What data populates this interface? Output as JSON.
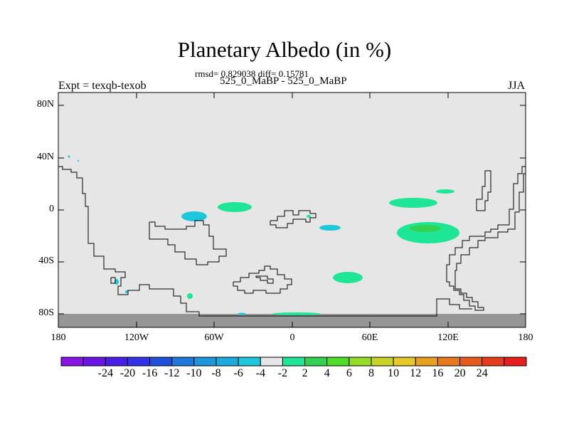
{
  "title": "Planetary Albedo (in %)",
  "stats_text": "rmsd= 0.829038 diff= 0.15781",
  "case_text": "525_0_MaBP - 525_0_MaBP",
  "expt_text": "Expt = texqb-texob",
  "season_text": "JJA",
  "y_ticks": [
    "80N",
    "40N",
    "0",
    "40S",
    "80S"
  ],
  "x_ticks": [
    "180",
    "120W",
    "60W",
    "0",
    "60E",
    "120E",
    "180"
  ],
  "colorbar": {
    "colors": [
      "#8a14e6",
      "#6a14e6",
      "#4a1ee6",
      "#3232e6",
      "#1e50dc",
      "#1e78dc",
      "#1e96dc",
      "#1eaadc",
      "#1ec8dc",
      "#e6e6e6",
      "#1ee696",
      "#32d250",
      "#50dc28",
      "#96dc28",
      "#c8d228",
      "#e6c828",
      "#e6a01e",
      "#e6781e",
      "#e65a1e",
      "#e63c1e",
      "#e61e1e"
    ],
    "labels": [
      "-24",
      "-20",
      "-16",
      "-12",
      "-10",
      "-8",
      "-6",
      "-4",
      "-2",
      "2",
      "4",
      "6",
      "8",
      "10",
      "12",
      "16",
      "20",
      "24"
    ]
  },
  "colors": {
    "ocean_background": "#e6e6e6",
    "antarctic_mask": "#969696",
    "positive_anomaly": "#1ee696",
    "strong_positive_anomaly": "#32d250",
    "negative_anomaly": "#1ec8dc",
    "coastline": "#000000"
  }
}
